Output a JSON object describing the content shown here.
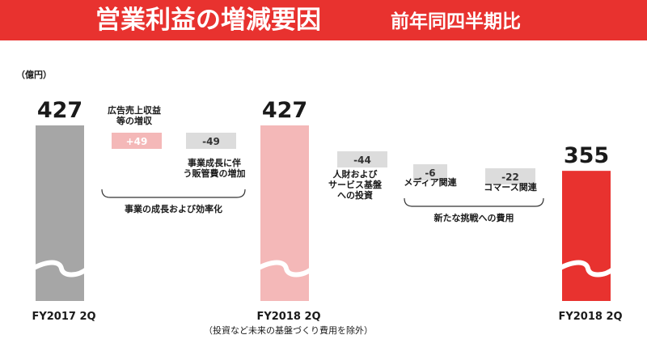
{
  "header": {
    "title": "営業利益の増減要因",
    "subtitle": "前年同四半期比",
    "color": "#e8322f"
  },
  "unit_label": "（億円）",
  "footnote": "（投資など未来の基盤づくり費用を除外）",
  "chart_data": {
    "type": "bar",
    "subtype": "waterfall",
    "bars": [
      {
        "category": "FY2017 2Q",
        "value": 427,
        "kind": "total",
        "color": "#a6a6a6"
      },
      {
        "category": "広告売上収益等の増収",
        "value": 49,
        "value_label": "+49",
        "kind": "delta",
        "color": "#f4b8b8"
      },
      {
        "category": "事業成長に伴う販管費の増加",
        "value": -49,
        "value_label": "-49",
        "kind": "delta",
        "color": "#dcdcdc"
      },
      {
        "category": "FY2018 2Q",
        "value": 427,
        "kind": "total",
        "color": "#f4b8b8"
      },
      {
        "category": "人財およびサービス基盤への投資",
        "value": -44,
        "value_label": "-44",
        "kind": "delta",
        "color": "#dcdcdc"
      },
      {
        "category": "メディア関連",
        "value": -6,
        "value_label": "-6",
        "kind": "delta",
        "color": "#dcdcdc"
      },
      {
        "category": "コマース関連",
        "value": -22,
        "value_label": "-22",
        "kind": "delta",
        "color": "#dcdcdc"
      },
      {
        "category": "FY2018 2Q",
        "value": 355,
        "kind": "total",
        "color": "#e8322f"
      }
    ],
    "axis_labels": [
      "FY2017 2Q",
      "FY2018 2Q",
      "FY2018 2Q"
    ],
    "brackets": [
      "事業の成長および効率化",
      "新たな挑戦への費用"
    ],
    "broken_axis": true,
    "legend": "none",
    "grid": false
  }
}
